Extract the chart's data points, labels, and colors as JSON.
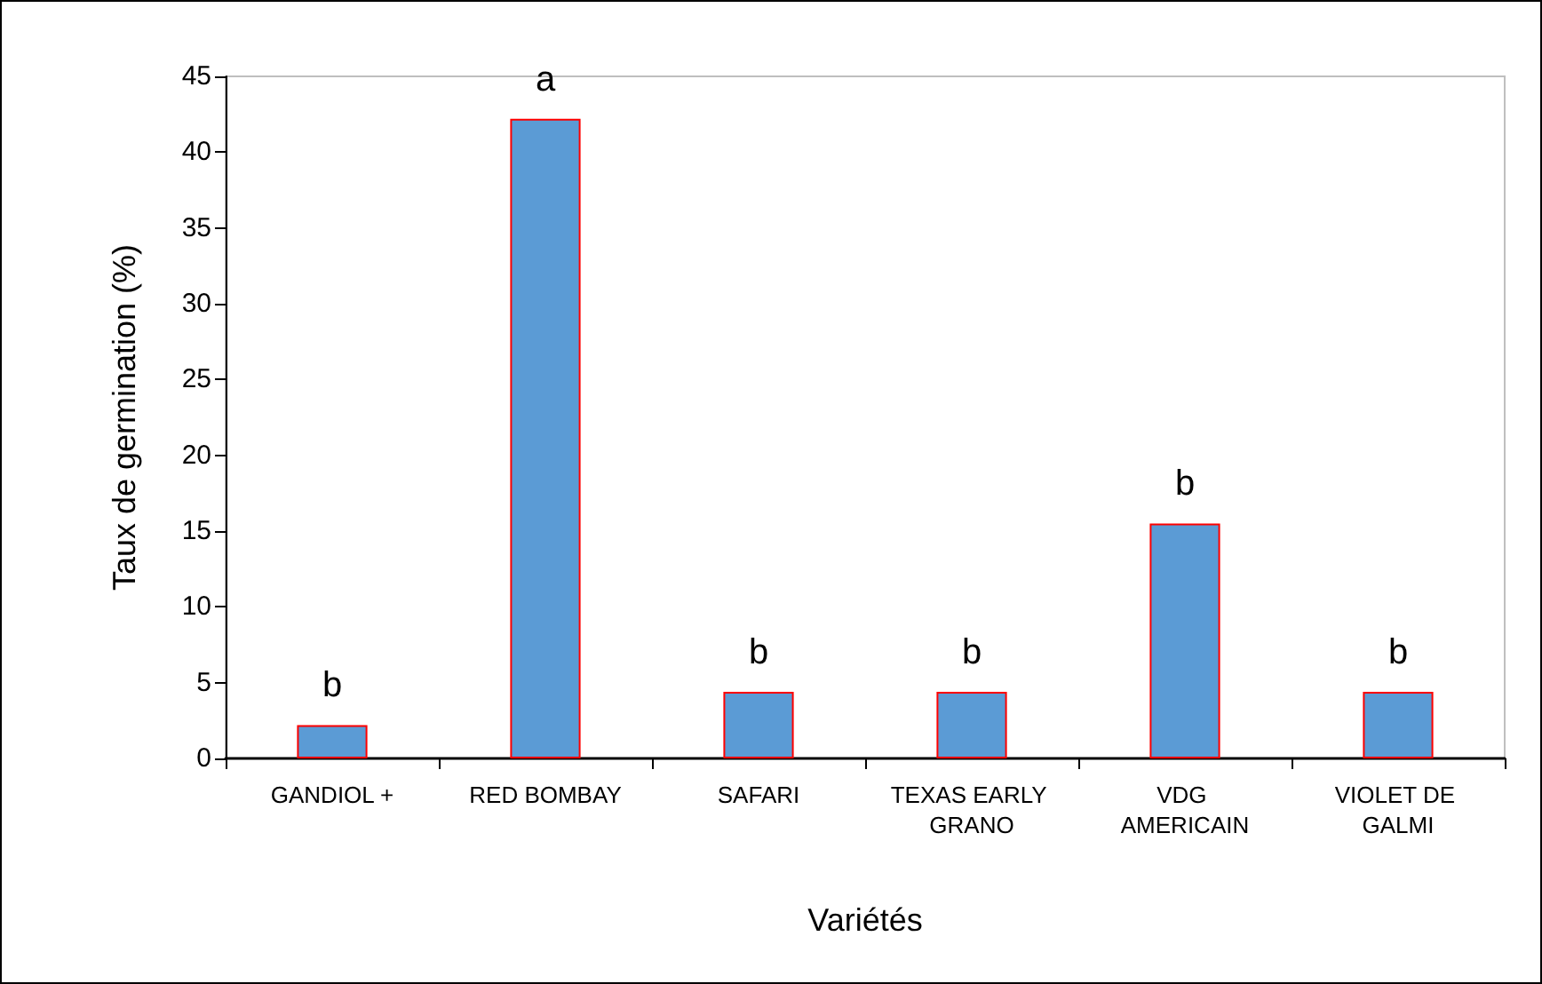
{
  "chart_data": {
    "type": "bar",
    "xlabel": "Variétés",
    "ylabel": "Taux de germination (%)",
    "categories": [
      "GANDIOL +",
      "RED BOMBAY",
      "SAFARI",
      "TEXAS EARLY GRANO",
      "VDG AMERICAIN",
      "VIOLET DE GALMI"
    ],
    "values": [
      2.2,
      42.2,
      4.4,
      4.4,
      15.5,
      4.4
    ],
    "value_labels": [
      "b",
      "a",
      "b",
      "b",
      "b",
      "b"
    ],
    "color": "#5b9bd5",
    "ylim": [
      0,
      45
    ],
    "yticks": [
      0,
      5,
      10,
      15,
      20,
      25,
      30,
      35,
      40,
      45
    ],
    "grid": false
  }
}
